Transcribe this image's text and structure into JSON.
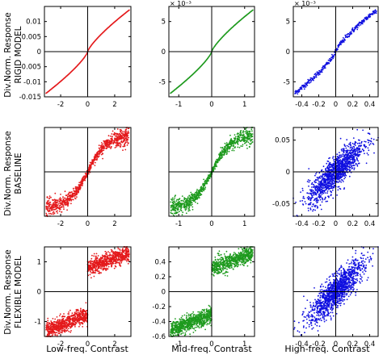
{
  "colors": {
    "low": "#e41a1c",
    "mid": "#1e9a1e",
    "high": "#1010e0",
    "axis": "#000000"
  },
  "columns": [
    "Low-freq. Contrast",
    "Mid-freq. Contrast",
    "High-freq. Contrast"
  ],
  "rows": [
    {
      "label_line1": "Div.Norm. Response",
      "label_line2": "RIGID MODEL"
    },
    {
      "label_line1": "Div.Norm. Response",
      "label_line2": "BASELINE"
    },
    {
      "label_line1": "Div.Norm. Response",
      "label_line2": "FLEXIBLE MODEL"
    }
  ],
  "chart_data": [
    {
      "type": "scatter",
      "row": 0,
      "col": 0,
      "series_color": "low",
      "shape": "curve",
      "xlim": [
        -3.2,
        3.2
      ],
      "ylim": [
        -0.015,
        0.015
      ],
      "xticks": [
        -2,
        0,
        2
      ],
      "xtick_labels": [
        "-2",
        "0",
        "2"
      ],
      "yticks": [
        -0.015,
        -0.01,
        -0.005,
        0,
        0.005,
        0.01
      ],
      "ytick_labels": [
        "-0.015",
        "-0.01",
        "-0.005",
        "0",
        "0.005",
        "0.01"
      ],
      "exponent": ""
    },
    {
      "type": "scatter",
      "row": 0,
      "col": 1,
      "series_color": "mid",
      "shape": "curve",
      "xlim": [
        -1.3,
        1.3
      ],
      "ylim": [
        -7.5,
        7.5
      ],
      "xticks": [
        -1,
        0,
        1
      ],
      "xtick_labels": [
        "-1",
        "0",
        "1"
      ],
      "yticks": [
        -5,
        0,
        5
      ],
      "ytick_labels": [
        "-5",
        "0",
        "5"
      ],
      "exponent": "× 10⁻³"
    },
    {
      "type": "scatter",
      "row": 0,
      "col": 2,
      "series_color": "high",
      "shape": "curve",
      "xlim": [
        -0.5,
        0.5
      ],
      "ylim": [
        -7.5,
        7.5
      ],
      "xticks": [
        -0.4,
        -0.2,
        0,
        0.2,
        0.4
      ],
      "xtick_labels": [
        "-0.4",
        "-0.2",
        "0",
        "0.2",
        "0.4"
      ],
      "yticks": [
        -5,
        0,
        5
      ],
      "ytick_labels": [
        "-5",
        "0",
        "5"
      ],
      "exponent": "× 10⁻³"
    },
    {
      "type": "scatter",
      "row": 1,
      "col": 0,
      "series_color": "low",
      "shape": "band",
      "xlim": [
        -3.2,
        3.2
      ],
      "ylim": [
        -0.35,
        0.35
      ],
      "xticks": [
        -2,
        0,
        2
      ],
      "xtick_labels": [
        "-2",
        "0",
        "2"
      ],
      "yticks": [],
      "ytick_labels": [],
      "exponent": ""
    },
    {
      "type": "scatter",
      "row": 1,
      "col": 1,
      "series_color": "mid",
      "shape": "band",
      "xlim": [
        -1.3,
        1.3
      ],
      "ylim": [
        -0.3,
        0.3
      ],
      "xticks": [
        -1,
        0,
        1
      ],
      "xtick_labels": [
        "-1",
        "0",
        "1"
      ],
      "yticks": [],
      "ytick_labels": [],
      "exponent": ""
    },
    {
      "type": "scatter",
      "row": 1,
      "col": 2,
      "series_color": "high",
      "shape": "cloud",
      "xlim": [
        -0.5,
        0.5
      ],
      "ylim": [
        -0.07,
        0.07
      ],
      "xticks": [
        -0.4,
        -0.2,
        0,
        0.2,
        0.4
      ],
      "xtick_labels": [
        "-0.4",
        "-0.2",
        "0",
        "0.2",
        "0.4"
      ],
      "yticks": [
        -0.05,
        0,
        0.05
      ],
      "ytick_labels": [
        "-0.05",
        "0",
        "0.05"
      ],
      "exponent": ""
    },
    {
      "type": "scatter",
      "row": 2,
      "col": 0,
      "series_color": "low",
      "shape": "step",
      "xlim": [
        -3.2,
        3.2
      ],
      "ylim": [
        -1.5,
        1.5
      ],
      "xticks": [
        -2,
        0,
        2
      ],
      "xtick_labels": [
        "-2",
        "0",
        "2"
      ],
      "yticks": [
        -1,
        0,
        1
      ],
      "ytick_labels": [
        "-1",
        "0",
        "1"
      ],
      "exponent": ""
    },
    {
      "type": "scatter",
      "row": 2,
      "col": 1,
      "series_color": "mid",
      "shape": "step",
      "xlim": [
        -1.3,
        1.3
      ],
      "ylim": [
        -0.6,
        0.6
      ],
      "xticks": [
        -1,
        0,
        1
      ],
      "xtick_labels": [
        "-1",
        "0",
        "1"
      ],
      "yticks": [
        -0.6,
        -0.4,
        -0.2,
        0,
        0.2,
        0.4
      ],
      "ytick_labels": [
        "-0.6",
        "-0.4",
        "-0.2",
        "0",
        "0.2",
        "0.4"
      ],
      "exponent": ""
    },
    {
      "type": "scatter",
      "row": 2,
      "col": 2,
      "series_color": "high",
      "shape": "cloud",
      "xlim": [
        -0.5,
        0.5
      ],
      "ylim": [
        -2.0,
        2.0
      ],
      "xticks": [
        -0.4,
        -0.2,
        0,
        0.2,
        0.4
      ],
      "xtick_labels": [
        "-0.4",
        "-0.2",
        "0",
        "0.2",
        "0.4"
      ],
      "yticks": [],
      "ytick_labels": [],
      "exponent": ""
    }
  ]
}
